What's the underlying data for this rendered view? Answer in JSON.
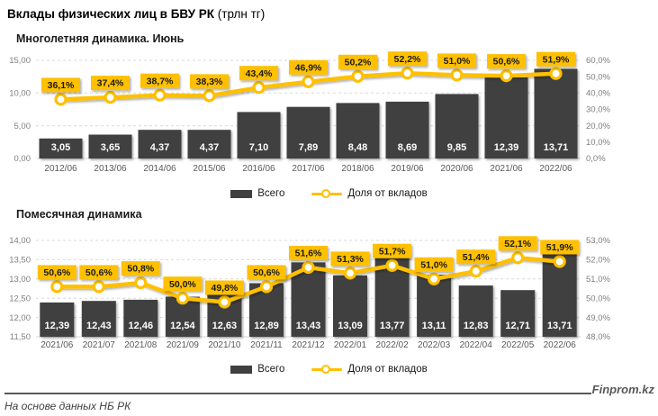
{
  "header": {
    "title": "Вклады физических лиц в БВУ РК",
    "unit": "(трлн тг)"
  },
  "footer": {
    "source": "На основе данных НБ РК",
    "brand": "Finprom.kz"
  },
  "colors": {
    "bar": "#404040",
    "accent": "#FFC000",
    "axis_text": "#7f7f7f",
    "category_text": "#595959",
    "grid": "#d9d9d9",
    "bar_label": "#ffffff",
    "chip_text": "#1a1a1a"
  },
  "chart_data": [
    {
      "type": "bar+line",
      "title": "Многолетняя динамика. Июнь",
      "categories": [
        "2012/06",
        "2013/06",
        "2014/06",
        "2015/06",
        "2016/06",
        "2017/06",
        "2018/06",
        "2019/06",
        "2020/06",
        "2021/06",
        "2022/06"
      ],
      "series": [
        {
          "name": "Всего",
          "type": "bar",
          "values": [
            3.05,
            3.65,
            4.37,
            4.37,
            7.1,
            7.89,
            8.48,
            8.69,
            9.85,
            12.39,
            13.71
          ],
          "decimals": 2
        },
        {
          "name": "Доля от вкладов",
          "type": "line",
          "values": [
            36.1,
            37.4,
            38.7,
            38.3,
            43.4,
            46.9,
            50.2,
            52.2,
            51.0,
            50.6,
            51.9
          ],
          "decimals": 1,
          "suffix": "%"
        }
      ],
      "left_axis": {
        "min": 0,
        "max": 15,
        "step": 5,
        "decimals": 2
      },
      "right_axis": {
        "min": 0,
        "max": 60,
        "step": 10,
        "decimals": 1,
        "suffix": "%"
      },
      "grid": "dashed",
      "legend_position": "bottom"
    },
    {
      "type": "bar+line",
      "title": "Помесячная динамика",
      "categories": [
        "2021/06",
        "2021/07",
        "2021/08",
        "2021/09",
        "2021/10",
        "2021/11",
        "2021/12",
        "2022/01",
        "2022/02",
        "2022/03",
        "2022/04",
        "2022/05",
        "2022/06"
      ],
      "series": [
        {
          "name": "Всего",
          "type": "bar",
          "values": [
            12.39,
            12.43,
            12.46,
            12.54,
            12.63,
            12.89,
            13.43,
            13.09,
            13.77,
            13.11,
            12.83,
            12.71,
            13.71
          ],
          "decimals": 2
        },
        {
          "name": "Доля от вкладов",
          "type": "line",
          "values": [
            50.6,
            50.6,
            50.8,
            50.0,
            49.8,
            50.6,
            51.6,
            51.3,
            51.7,
            51.0,
            51.4,
            52.1,
            51.9
          ],
          "decimals": 1,
          "suffix": "%"
        }
      ],
      "left_axis": {
        "min": 11.5,
        "max": 14,
        "step": 0.5,
        "decimals": 2
      },
      "right_axis": {
        "min": 48,
        "max": 53,
        "step": 1,
        "decimals": 1,
        "suffix": "%"
      },
      "grid": "dashed",
      "legend_position": "bottom"
    }
  ]
}
